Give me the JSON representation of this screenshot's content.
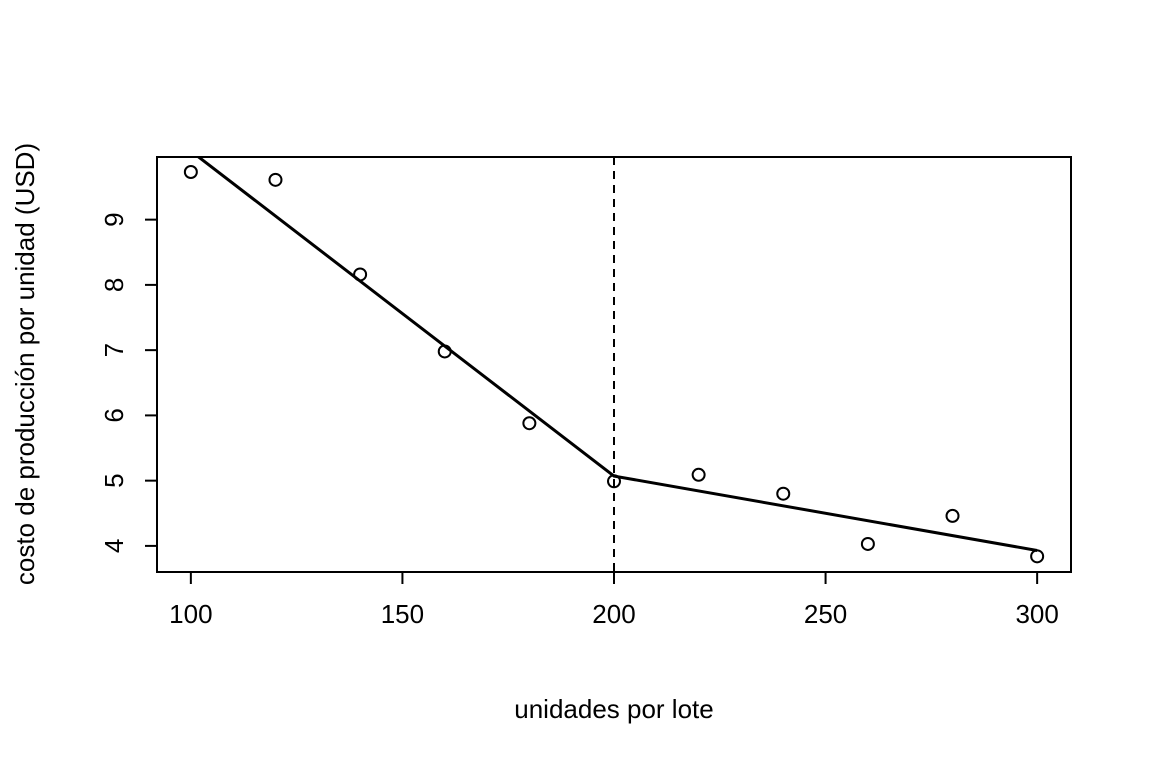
{
  "chart_data": {
    "type": "scatter",
    "title": "",
    "xlabel": "unidades por lote",
    "ylabel": "costo de producción por unidad (USD)",
    "xlim": [
      92,
      308
    ],
    "ylim": [
      3.6,
      9.96
    ],
    "xticks": [
      100,
      150,
      200,
      250,
      300
    ],
    "yticks": [
      4,
      5,
      6,
      7,
      8,
      9
    ],
    "points": {
      "x": [
        100,
        120,
        140,
        160,
        180,
        200,
        220,
        240,
        260,
        280,
        300
      ],
      "y": [
        9.73,
        9.61,
        8.16,
        6.98,
        5.88,
        4.99,
        5.09,
        4.8,
        4.03,
        4.46,
        3.84
      ]
    },
    "fit_line": {
      "x": [
        92,
        200,
        300
      ],
      "y": [
        10.45,
        5.07,
        3.93
      ]
    },
    "breakpoint_x": 200,
    "grid": false,
    "legend": "none"
  }
}
